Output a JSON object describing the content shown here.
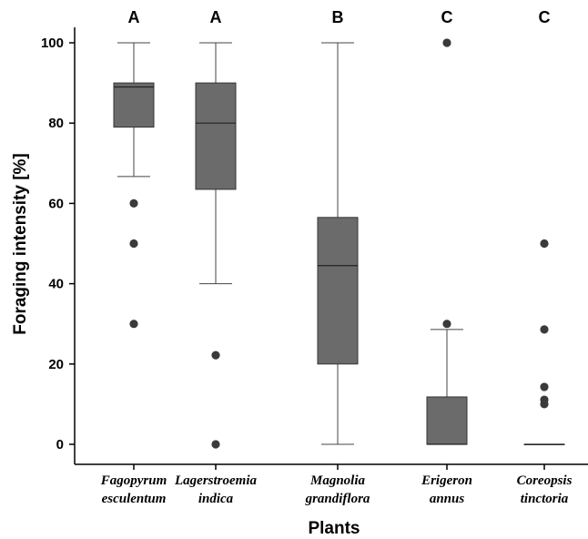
{
  "chart_data": {
    "type": "box",
    "xlabel": "Plants",
    "ylabel": "Foraging intensity [%]",
    "ylim": [
      -5,
      105
    ],
    "yticks": [
      "0",
      "20",
      "40",
      "60",
      "80",
      "100"
    ],
    "box_color": "#6b6b6b",
    "outlier_color": "#3a3a3a",
    "categories": [
      {
        "name": [
          "Fagopyrum",
          "esculentum"
        ],
        "group": "A",
        "whisker_low": 66.7,
        "q1": 79,
        "median": 89,
        "q3": 90,
        "whisker_high": 100,
        "outliers": [
          60,
          50,
          30
        ]
      },
      {
        "name": [
          "Lagerstroemia",
          "indica"
        ],
        "group": "A",
        "whisker_low": 40,
        "q1": 63.5,
        "median": 80,
        "q3": 90,
        "whisker_high": 100,
        "outliers": [
          22.2,
          0
        ]
      },
      {
        "name": [
          "Magnolia",
          "grandiflora"
        ],
        "group": "B",
        "whisker_low": 0,
        "q1": 20,
        "median": 44.5,
        "q3": 56.5,
        "whisker_high": 100,
        "outliers": []
      },
      {
        "name": [
          "Erigeron",
          "annus"
        ],
        "group": "C",
        "whisker_low": 0,
        "q1": 0,
        "median": 0,
        "q3": 11.8,
        "whisker_high": 28.6,
        "outliers": [
          100,
          30
        ]
      },
      {
        "name": [
          "Coreopsis",
          "tinctoria"
        ],
        "group": "C",
        "whisker_low": 0,
        "q1": 0,
        "median": 0,
        "q3": 0,
        "whisker_high": 0,
        "outliers": [
          50,
          28.6,
          14.3,
          11.1,
          10
        ]
      }
    ]
  }
}
